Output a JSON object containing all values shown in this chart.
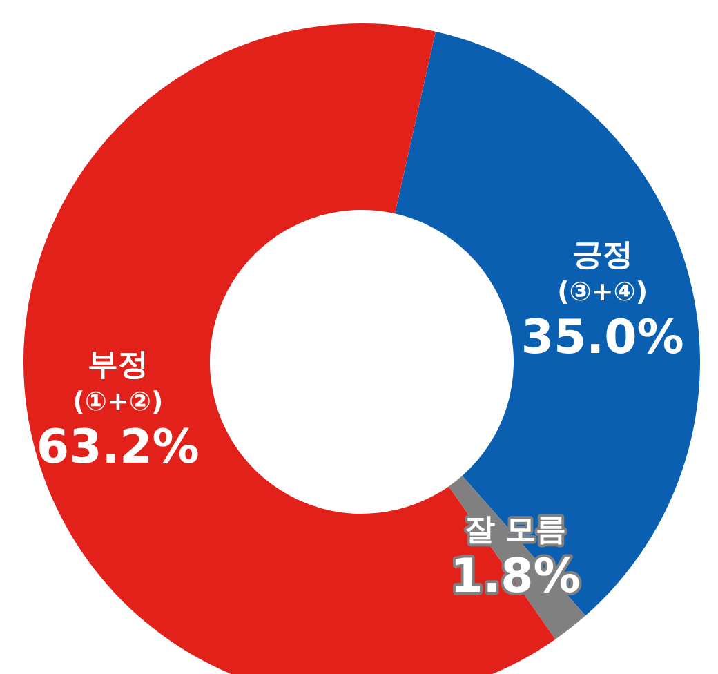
{
  "chart_data": {
    "type": "donut",
    "categories": [
      "부정\n(①+②)",
      "긍정\n(③+④)",
      "잘 모름"
    ],
    "values": [
      63.2,
      35.0,
      1.8
    ],
    "colors": [
      "#e3211b",
      "#0a5fb0",
      "#808080"
    ],
    "value_labels": [
      "63.2%",
      "35.0%",
      "1.8%"
    ]
  }
}
